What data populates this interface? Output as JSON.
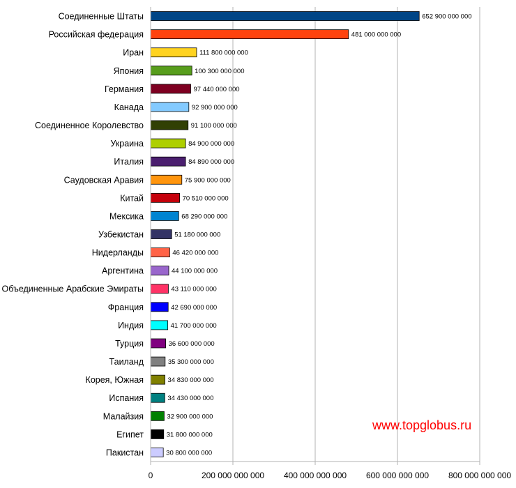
{
  "watermark": "www.topglobus.ru",
  "chart_data": {
    "type": "bar",
    "orientation": "horizontal",
    "xlim": [
      0,
      800000000000
    ],
    "xticks": [
      0,
      200000000000,
      400000000000,
      600000000000,
      800000000000
    ],
    "xtick_labels": [
      "0",
      "200 000 000 000",
      "400 000 000 000",
      "600 000 000 000",
      "800 000 000 000"
    ],
    "grid": "vertical gridlines",
    "categories": [
      "Соединенные Штаты",
      "Российская федерация",
      "Иран",
      "Япония",
      "Германия",
      "Канада",
      "Соединенное Королевство",
      "Украина",
      "Италия",
      "Саудовская Аравия",
      "Китай",
      "Мексика",
      "Узбекистан",
      "Нидерланды",
      "Аргентина",
      "Объединенные Арабские Эмираты",
      "Франция",
      "Индия",
      "Турция",
      "Таиланд",
      "Корея, Южная",
      "Испания",
      "Малайзия",
      "Египет",
      "Пакистан"
    ],
    "values": [
      652900000000,
      481000000000,
      111800000000,
      100300000000,
      97440000000,
      92900000000,
      91100000000,
      84900000000,
      84890000000,
      75900000000,
      70510000000,
      68290000000,
      51180000000,
      46420000000,
      44100000000,
      43110000000,
      42690000000,
      41700000000,
      36600000000,
      35300000000,
      34830000000,
      34430000000,
      32900000000,
      31800000000,
      30800000000
    ],
    "value_labels": [
      "652 900 000 000",
      "481 000 000 000",
      "111 800 000 000",
      "100 300 000 000",
      "97 440 000 000",
      "92 900 000 000",
      "91 100 000 000",
      "84 900 000 000",
      "84 890 000 000",
      "75 900 000 000",
      "70 510 000 000",
      "68 290 000 000",
      "51 180 000 000",
      "46 420 000 000",
      "44 100 000 000",
      "43 110 000 000",
      "42 690 000 000",
      "41 700 000 000",
      "36 600 000 000",
      "35 300 000 000",
      "34 830 000 000",
      "34 430 000 000",
      "32 900 000 000",
      "31 800 000 000",
      "30 800 000 000"
    ],
    "colors": [
      "#004586",
      "#ff420e",
      "#ffd320",
      "#579d1c",
      "#7e0021",
      "#83caff",
      "#314004",
      "#aecf00",
      "#4b1f6f",
      "#ff950e",
      "#c5000b",
      "#0084d1",
      "#333366",
      "#ff6347",
      "#9966cc",
      "#ff3366",
      "#0000ff",
      "#00ffff",
      "#800080",
      "#808080",
      "#808000",
      "#008080",
      "#008000",
      "#000000",
      "#ccccff"
    ]
  }
}
